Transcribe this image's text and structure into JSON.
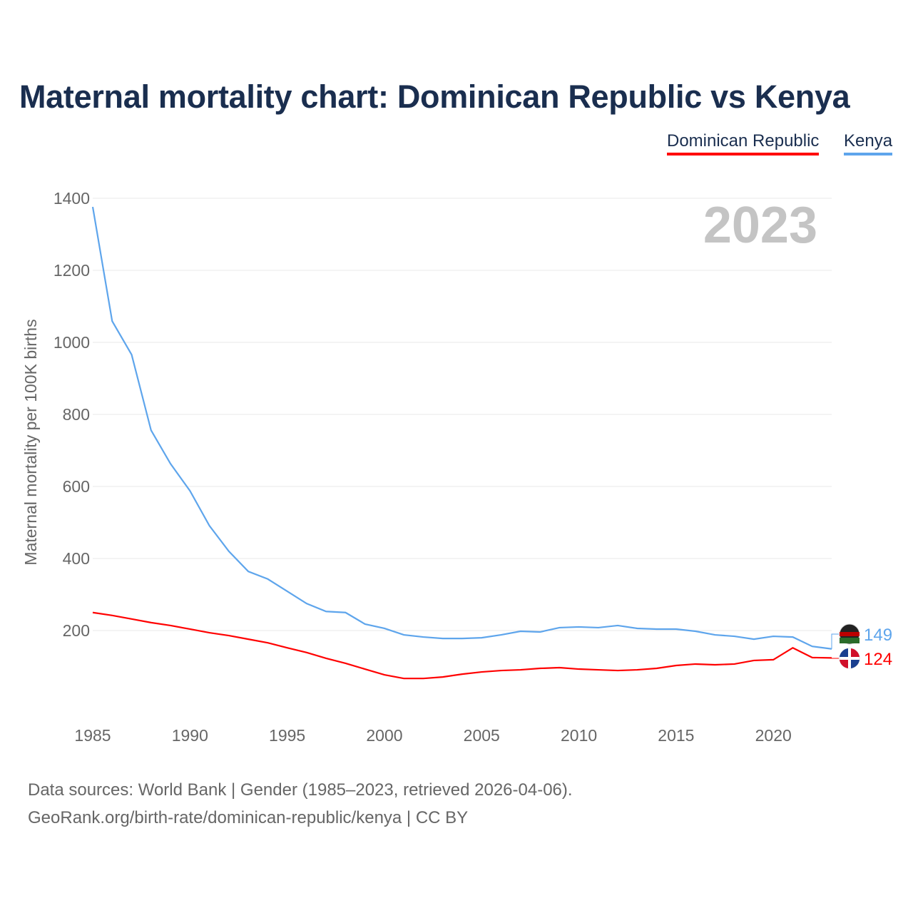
{
  "title": "Maternal mortality chart: Dominican Republic vs Kenya",
  "legend": [
    "Dominican Republic",
    "Kenya"
  ],
  "source_line1": "Data sources: World Bank | Gender (1985–2023, retrieved 2026-04-06).",
  "source_line2": "GeoRank.org/birth-rate/dominican-republic/kenya | CC BY",
  "chart_data": {
    "type": "line",
    "title": "Maternal mortality chart: Dominican Republic vs Kenya",
    "ylabel": "Maternal mortality per 100K births",
    "xlabel": "",
    "year_label": "2023",
    "ylim": [
      0,
      1400
    ],
    "xlim": [
      1985,
      2023
    ],
    "yticks": [
      200,
      400,
      600,
      800,
      1000,
      1200,
      1400
    ],
    "xticks": [
      1985,
      1990,
      1995,
      2000,
      2005,
      2010,
      2015,
      2020
    ],
    "x": [
      1985,
      1986,
      1987,
      1988,
      1989,
      1990,
      1991,
      1992,
      1993,
      1994,
      1995,
      1996,
      1997,
      1998,
      1999,
      2000,
      2001,
      2002,
      2003,
      2004,
      2005,
      2006,
      2007,
      2008,
      2009,
      2010,
      2011,
      2012,
      2013,
      2014,
      2015,
      2016,
      2017,
      2018,
      2019,
      2020,
      2021,
      2022,
      2023
    ],
    "series": [
      {
        "name": "Dominican Republic",
        "color": "#ff0000",
        "end_label": "124",
        "values": [
          250,
          242,
          232,
          222,
          214,
          204,
          194,
          186,
          176,
          166,
          152,
          139,
          123,
          109,
          93,
          77,
          67,
          67,
          71,
          79,
          85,
          89,
          91,
          95,
          97,
          93,
          91,
          89,
          91,
          95,
          103,
          107,
          105,
          107,
          117,
          119,
          152,
          125,
          124
        ]
      },
      {
        "name": "Kenya",
        "color": "#5ea5ec",
        "end_label": "149",
        "values": [
          1376,
          1059,
          966,
          756,
          663,
          588,
          491,
          420,
          364,
          343,
          309,
          275,
          253,
          250,
          218,
          206,
          188,
          182,
          178,
          178,
          180,
          188,
          198,
          196,
          208,
          210,
          208,
          214,
          206,
          204,
          204,
          198,
          188,
          184,
          176,
          184,
          182,
          156,
          149
        ]
      }
    ]
  }
}
